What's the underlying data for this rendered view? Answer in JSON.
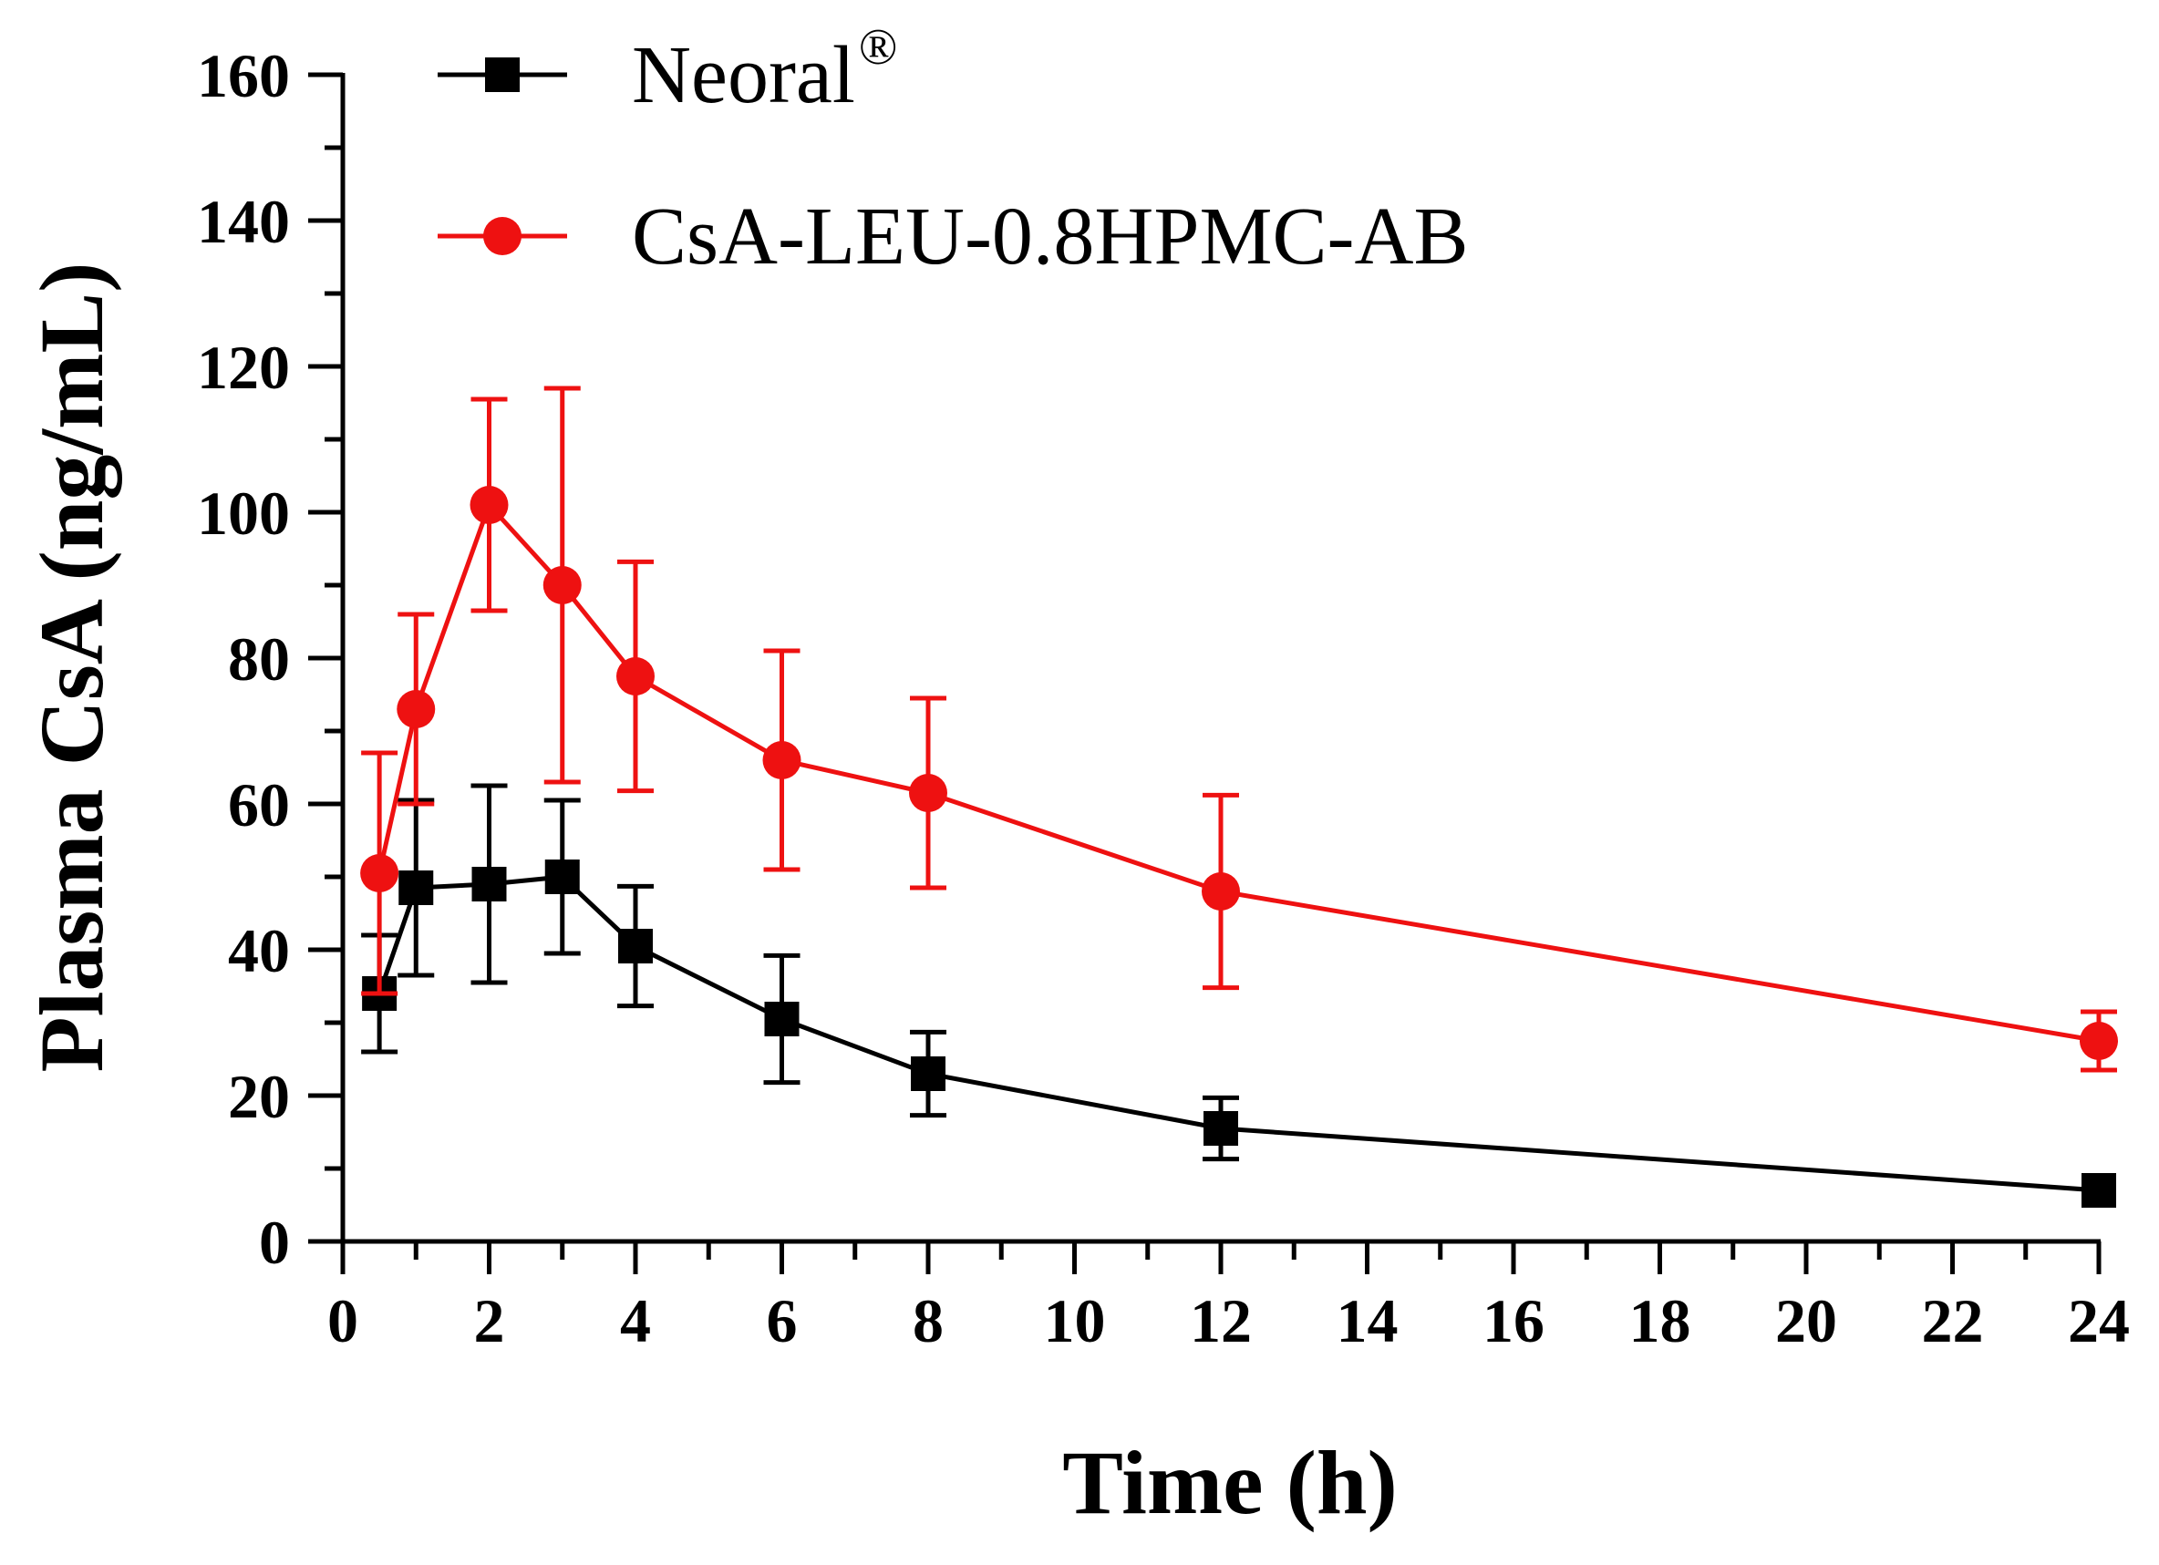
{
  "chart_data": {
    "type": "line",
    "title": "",
    "xlabel": "Time (h)",
    "ylabel": "Plasma CsA (ng/mL)",
    "xlim": [
      0,
      24
    ],
    "ylim": [
      0,
      160
    ],
    "xticks": [
      0,
      2,
      4,
      6,
      8,
      10,
      12,
      14,
      16,
      18,
      20,
      22,
      24
    ],
    "yticks": [
      0,
      20,
      40,
      60,
      80,
      100,
      120,
      140,
      160
    ],
    "grid": false,
    "legend_position": "top-left",
    "series": [
      {
        "name": "Neoral",
        "name_superscript": "®",
        "color": "#000000",
        "marker": "square",
        "x": [
          0.5,
          1,
          2,
          3,
          4,
          6,
          8,
          12,
          24
        ],
        "y": [
          34,
          48.5,
          49,
          50,
          40.5,
          30.5,
          23,
          15.5,
          7
        ],
        "error": [
          8,
          12,
          13.5,
          10.5,
          8.2,
          8.7,
          5.7,
          4.2,
          0
        ]
      },
      {
        "name": "CsA-LEU-0.8HPMC-AB",
        "color": "#ee1111",
        "marker": "circle",
        "x": [
          0.5,
          1,
          2,
          3,
          4,
          6,
          8,
          12,
          24
        ],
        "y": [
          50.5,
          73,
          101,
          90,
          77.5,
          66,
          61.5,
          48,
          27.5
        ],
        "error": [
          16.5,
          13,
          14.5,
          27,
          15.7,
          15,
          13,
          13.2,
          4
        ]
      }
    ]
  }
}
